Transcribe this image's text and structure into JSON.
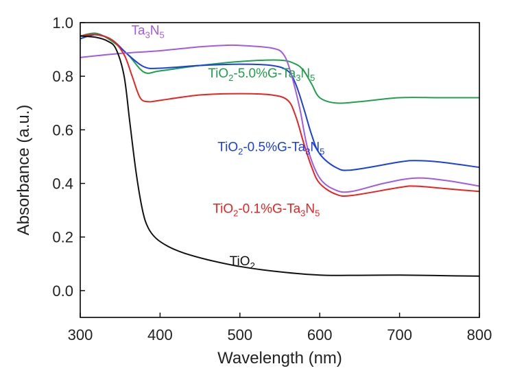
{
  "chart_data": {
    "type": "line",
    "xlabel": "Wavelength (nm)",
    "ylabel": "Absorbance (a.u.)",
    "xlim": [
      300,
      800
    ],
    "ylim": [
      -0.1,
      1.0
    ],
    "xticks": [
      "300",
      "400",
      "500",
      "600",
      "700",
      "800"
    ],
    "yticks": [
      "0.0",
      "0.2",
      "0.4",
      "0.6",
      "0.8",
      "1.0"
    ],
    "grid": false,
    "series": [
      {
        "label_parts": [
          [
            "TiO",
            ""
          ],
          [
            "2",
            "sub"
          ],
          [
            "-5.0%G-Ta",
            ""
          ],
          [
            "3",
            "sub"
          ],
          [
            "N",
            ""
          ],
          [
            "5",
            "sub"
          ]
        ],
        "color": "#1fa04a",
        "label_pos": [
          460,
          0.795
        ],
        "x": [
          300,
          320,
          340,
          360,
          380,
          400,
          450,
          500,
          550,
          570,
          580,
          590,
          600,
          620,
          650,
          700,
          750,
          800
        ],
        "y": [
          0.95,
          0.96,
          0.93,
          0.88,
          0.815,
          0.82,
          0.84,
          0.855,
          0.86,
          0.845,
          0.82,
          0.77,
          0.72,
          0.7,
          0.705,
          0.72,
          0.72,
          0.72
        ]
      },
      {
        "label_parts": [
          [
            "TiO",
            ""
          ],
          [
            "2",
            "sub"
          ],
          [
            "-0.5%G-Ta",
            ""
          ],
          [
            "3",
            "sub"
          ],
          [
            "N",
            ""
          ],
          [
            "5",
            "sub"
          ]
        ],
        "color": "#1a3fe0",
        "label_pos": [
          472,
          0.52
        ],
        "x": [
          300,
          320,
          340,
          360,
          380,
          400,
          450,
          500,
          540,
          560,
          570,
          580,
          590,
          600,
          620,
          640,
          700,
          720,
          750,
          800
        ],
        "y": [
          0.94,
          0.955,
          0.935,
          0.88,
          0.835,
          0.83,
          0.84,
          0.845,
          0.84,
          0.82,
          0.77,
          0.68,
          0.58,
          0.51,
          0.46,
          0.45,
          0.48,
          0.485,
          0.48,
          0.46
        ]
      },
      {
        "label_parts": [
          [
            "Ta",
            ""
          ],
          [
            "3",
            "sub"
          ],
          [
            "N",
            ""
          ],
          [
            "5",
            "sub"
          ]
        ],
        "color": "#a35ae0",
        "label_pos": [
          364,
          0.955
        ],
        "x": [
          300,
          350,
          400,
          450,
          480,
          500,
          540,
          555,
          565,
          575,
          585,
          600,
          620,
          640,
          680,
          720,
          760,
          800
        ],
        "y": [
          0.87,
          0.885,
          0.895,
          0.91,
          0.915,
          0.915,
          0.905,
          0.88,
          0.8,
          0.68,
          0.53,
          0.42,
          0.375,
          0.37,
          0.4,
          0.42,
          0.41,
          0.39
        ]
      },
      {
        "label_parts": [
          [
            "TiO",
            ""
          ],
          [
            "2",
            "sub"
          ],
          [
            "-0.1%G-Ta",
            ""
          ],
          [
            "3",
            "sub"
          ],
          [
            "N",
            ""
          ],
          [
            "5",
            "sub"
          ]
        ],
        "color": "#e8231f",
        "label_pos": [
          466,
          0.29
        ],
        "x": [
          300,
          320,
          340,
          355,
          365,
          375,
          385,
          400,
          450,
          500,
          540,
          560,
          570,
          580,
          590,
          600,
          620,
          640,
          700,
          720,
          760,
          800
        ],
        "y": [
          0.95,
          0.955,
          0.935,
          0.88,
          0.8,
          0.72,
          0.705,
          0.71,
          0.73,
          0.735,
          0.73,
          0.71,
          0.65,
          0.55,
          0.46,
          0.4,
          0.36,
          0.355,
          0.385,
          0.39,
          0.38,
          0.37
        ]
      },
      {
        "label_parts": [
          [
            "TiO",
            ""
          ],
          [
            "2",
            "sub"
          ]
        ],
        "color": "#111111",
        "label_pos": [
          487,
          0.095
        ],
        "x": [
          300,
          320,
          335,
          345,
          355,
          362,
          370,
          378,
          385,
          395,
          410,
          430,
          460,
          500,
          550,
          600,
          650,
          700,
          750,
          800
        ],
        "y": [
          0.95,
          0.945,
          0.93,
          0.9,
          0.8,
          0.63,
          0.44,
          0.3,
          0.235,
          0.195,
          0.165,
          0.14,
          0.115,
          0.09,
          0.07,
          0.058,
          0.057,
          0.058,
          0.056,
          0.054
        ]
      }
    ]
  }
}
